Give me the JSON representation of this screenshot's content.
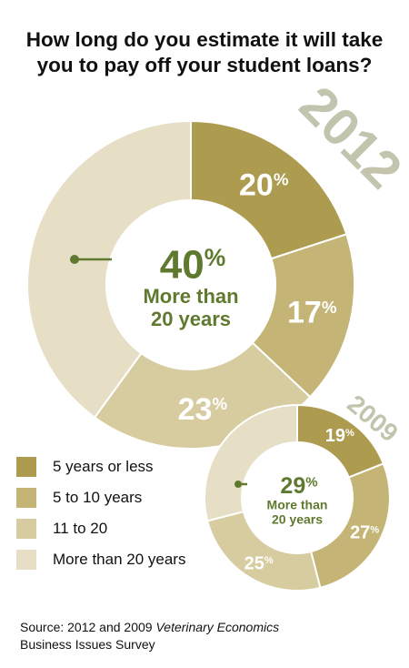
{
  "title": "How long do you estimate it will take you to pay off your student loans?",
  "colors": {
    "5 years or less": "#ad9b4f",
    "5 to 10 years": "#c4b577",
    "11 to 20": "#d6cca0",
    "More than 20 years": "#e6dfc6",
    "stroke": "#ffffff",
    "accent_green": "#5f7a2f",
    "year_label": "#c2c4ad"
  },
  "legend": [
    "5 years or less",
    "5 to 10 years",
    "11 to 20",
    "More than 20 years"
  ],
  "source": {
    "prefix": "Source: 2012 and 2009 ",
    "italic": "Veterinary Economics",
    "line2": "Business Issues Survey"
  },
  "chart_data": [
    {
      "type": "pie",
      "year": "2012",
      "categories": [
        "5 years or less",
        "5 to 10 years",
        "11 to 20",
        "More than 20 years"
      ],
      "values": [
        20,
        17,
        23,
        40
      ],
      "data_labels": [
        "20%",
        "17%",
        "23%",
        "40%"
      ],
      "center_label": {
        "value": "40%",
        "line1": "More than",
        "line2": "20 years"
      }
    },
    {
      "type": "pie",
      "year": "2009",
      "categories": [
        "5 years or less",
        "5 to 10 years",
        "11 to 20",
        "More than 20 years"
      ],
      "values": [
        19,
        27,
        25,
        29
      ],
      "data_labels": [
        "19%",
        "27%",
        "25%",
        "29%"
      ],
      "center_label": {
        "value": "29%",
        "line1": "More than",
        "line2": "20 years"
      }
    }
  ]
}
